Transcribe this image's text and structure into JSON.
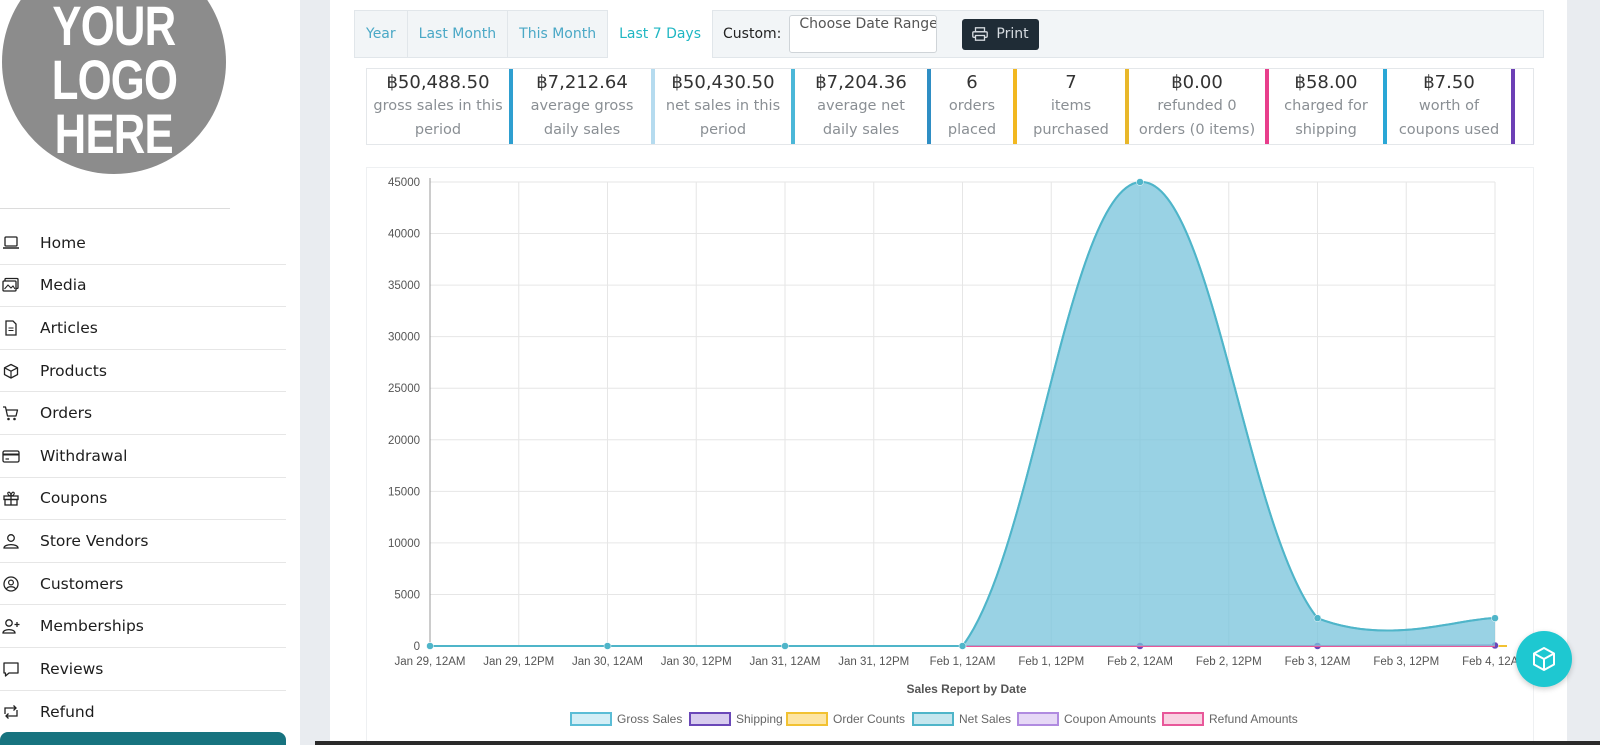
{
  "logo": {
    "lines": [
      "YOUR",
      "LOGO",
      "HERE"
    ]
  },
  "sidebar": {
    "items": [
      {
        "label": "Home",
        "icon": "laptop-icon"
      },
      {
        "label": "Media",
        "icon": "images-icon"
      },
      {
        "label": "Articles",
        "icon": "document-icon"
      },
      {
        "label": "Products",
        "icon": "box-icon"
      },
      {
        "label": "Orders",
        "icon": "cart-icon"
      },
      {
        "label": "Withdrawal",
        "icon": "credit-card-icon"
      },
      {
        "label": "Coupons",
        "icon": "gift-icon"
      },
      {
        "label": "Store Vendors",
        "icon": "user-icon"
      },
      {
        "label": "Customers",
        "icon": "user-circle-icon"
      },
      {
        "label": "Memberships",
        "icon": "user-plus-icon"
      },
      {
        "label": "Reviews",
        "icon": "comment-icon"
      },
      {
        "label": "Refund",
        "icon": "retweet-icon"
      }
    ]
  },
  "filters": {
    "tabs": [
      "Year",
      "Last Month",
      "This Month",
      "Last 7 Days"
    ],
    "active_tab": "Last 7 Days",
    "custom_label": "Custom:",
    "date_placeholder": "Choose Date Range",
    "print_label": "Print"
  },
  "stats": [
    {
      "value": "฿50,488.50",
      "desc": "gross sales in this period",
      "color": "#2e9fd0"
    },
    {
      "value": "฿7,212.64",
      "desc": "average gross daily sales",
      "color": "#b5dbef"
    },
    {
      "value": "฿50,430.50",
      "desc": "net sales in this period",
      "color": "#4bb7d8"
    },
    {
      "value": "฿7,204.36",
      "desc": "average net daily sales",
      "color": "#2f8ec4"
    },
    {
      "value": "6",
      "desc": "orders placed",
      "color": "#f2b820"
    },
    {
      "value": "7",
      "desc": "items purchased",
      "color": "#e8b72a"
    },
    {
      "value": "฿0.00",
      "desc": "refunded 0 orders (0 items)",
      "color": "#e83e8c"
    },
    {
      "value": "฿58.00",
      "desc": "charged for shipping",
      "color": "#2aa7d6"
    },
    {
      "value": "฿7.50",
      "desc": "worth of coupons used",
      "color": "#6c3fb5"
    }
  ],
  "chart_data": {
    "type": "area",
    "xlabel": "Sales Report by Date",
    "ylabel": "",
    "ylim": [
      0,
      45000
    ],
    "yticks": [
      0,
      5000,
      10000,
      15000,
      20000,
      25000,
      30000,
      35000,
      40000,
      45000
    ],
    "xticks": [
      "Jan 29, 12AM",
      "Jan 29, 12PM",
      "Jan 30, 12AM",
      "Jan 30, 12PM",
      "Jan 31, 12AM",
      "Jan 31, 12PM",
      "Feb 1, 12AM",
      "Feb 1, 12PM",
      "Feb 2, 12AM",
      "Feb 2, 12PM",
      "Feb 3, 12AM",
      "Feb 3, 12PM",
      "Feb 4, 12AM"
    ],
    "x": [
      "Jan 29, 12AM",
      "Jan 30, 12AM",
      "Jan 31, 12AM",
      "Feb 1, 12AM",
      "Feb 2, 12AM",
      "Feb 3, 12AM",
      "Feb 4, 12AM"
    ],
    "grid": true,
    "legend": "bottom",
    "series": [
      {
        "name": "Gross Sales",
        "values": [
          0,
          0,
          0,
          0,
          45000,
          2700,
          2700
        ],
        "color": "#5bbdd6"
      },
      {
        "name": "Shipping",
        "values": [
          0,
          0,
          0,
          0,
          0,
          0,
          50
        ],
        "color": "#6a48b8"
      },
      {
        "name": "Order Counts",
        "values": [
          0,
          0,
          0,
          0,
          1,
          1,
          1
        ],
        "color": "#f2c232"
      },
      {
        "name": "Net Sales",
        "values": [
          0,
          0,
          0,
          0,
          45000,
          2700,
          2700
        ],
        "color": "#4fb5c9"
      },
      {
        "name": "Coupon Amounts",
        "values": [
          0,
          0,
          0,
          0,
          0,
          0,
          7.5
        ],
        "color": "#b08be0"
      },
      {
        "name": "Refund Amounts",
        "values": [
          0,
          0,
          0,
          0,
          0,
          0,
          0
        ],
        "color": "#e8589a"
      }
    ]
  }
}
